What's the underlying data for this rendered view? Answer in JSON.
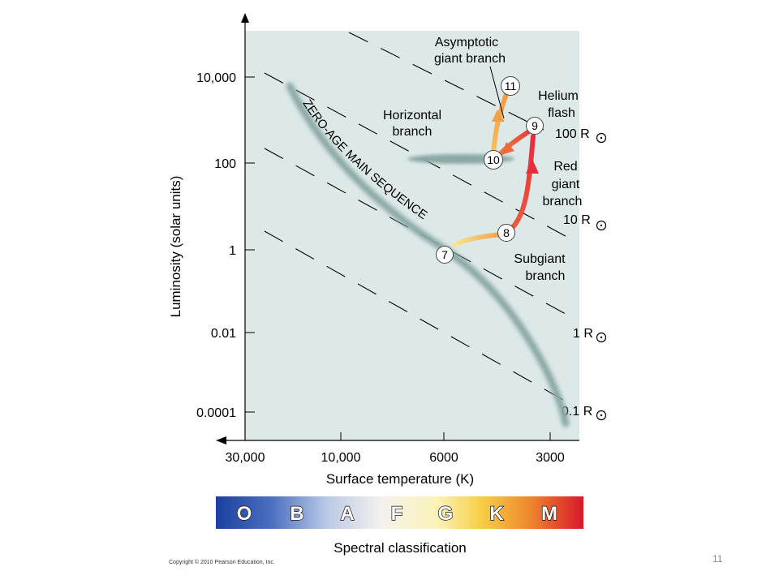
{
  "chart_data": {
    "type": "line",
    "xlabel": "Surface temperature (K)",
    "ylabel": "Luminosity (solar units)",
    "x_scale": "log-reversed",
    "y_scale": "log",
    "x_ticks": [
      {
        "value": 30000,
        "label": "30,000"
      },
      {
        "value": 10000,
        "label": "10,000"
      },
      {
        "value": 6000,
        "label": "6000"
      },
      {
        "value": 3000,
        "label": "3000"
      }
    ],
    "y_ticks": [
      {
        "value": 10000,
        "label": "10,000"
      },
      {
        "value": 100,
        "label": "100"
      },
      {
        "value": 1,
        "label": "1"
      },
      {
        "value": 0.01,
        "label": "0.01"
      },
      {
        "value": 0.0001,
        "label": "0.0001"
      }
    ],
    "radius_lines": [
      {
        "label": "100 R",
        "radius": 100
      },
      {
        "label": "10 R",
        "radius": 10
      },
      {
        "label": "1 R",
        "radius": 1
      },
      {
        "label": "0.1 R",
        "radius": 0.1
      }
    ],
    "main_sequence_label": "ZERO-AGE MAIN SEQUENCE",
    "region_labels": [
      {
        "text": [
          "Asymptotic",
          "giant branch"
        ]
      },
      {
        "text": [
          "Horizontal",
          "branch"
        ]
      },
      {
        "text": [
          "Helium",
          "flash"
        ]
      },
      {
        "text": [
          "Red",
          "giant",
          "branch"
        ]
      },
      {
        "text": [
          "Subgiant",
          "branch"
        ]
      }
    ],
    "stages": [
      {
        "label": "7",
        "temperature": 5800,
        "luminosity": 1
      },
      {
        "label": "8",
        "temperature": 4100,
        "luminosity": 2.2
      },
      {
        "label": "9",
        "temperature": 3400,
        "luminosity": 1000
      },
      {
        "label": "10",
        "temperature": 4500,
        "luminosity": 50
      },
      {
        "label": "11",
        "temperature": 4100,
        "luminosity": 3000
      }
    ]
  },
  "spectral": {
    "classes": [
      "O",
      "B",
      "A",
      "F",
      "G",
      "K",
      "M"
    ],
    "label": "Spectral classification"
  },
  "footer": {
    "copyright": "Copyright © 2010 Pearson Education, Inc.",
    "slide_number": "11"
  },
  "colors": {
    "plot_bg": "#dde9e9",
    "main_sequence": "#8aa8a4",
    "subgiant_start": "#f2dc74",
    "subgiant_end": "#f0a050",
    "red_giant": "#e8393a",
    "agb": "#f4ac48"
  }
}
